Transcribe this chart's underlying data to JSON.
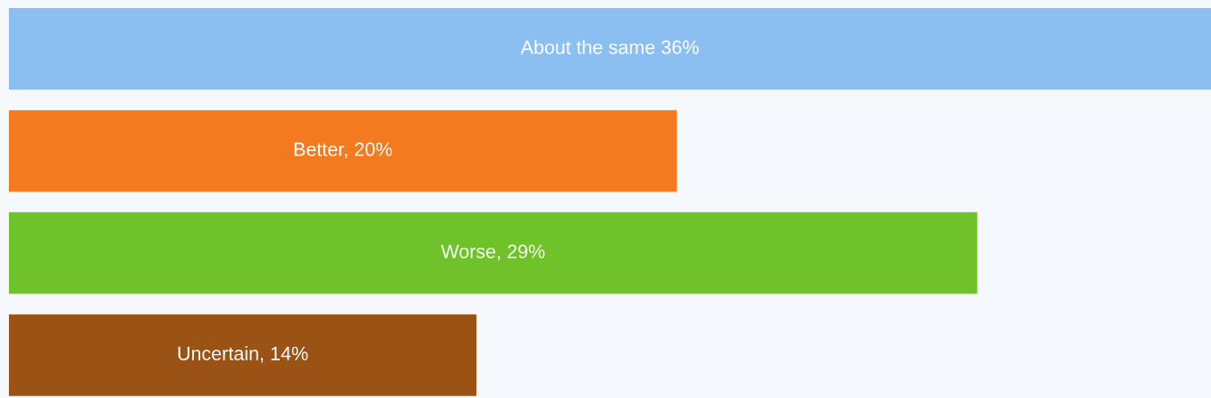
{
  "chart_data": {
    "type": "bar",
    "orientation": "horizontal",
    "categories": [
      null,
      null,
      null,
      null
    ],
    "values": [
      36,
      20,
      29,
      14
    ],
    "colors": [
      "#8bbff2",
      "#f47a1f",
      "#6fc229",
      "#9a5314"
    ],
    "value_labels": [
      "About the same 36%",
      "Better, 20%",
      "Worse, 29%",
      "Uncertain, 14%"
    ],
    "xlim": [
      0,
      36
    ],
    "tick_labels": false,
    "grid": false,
    "legend": false
  }
}
